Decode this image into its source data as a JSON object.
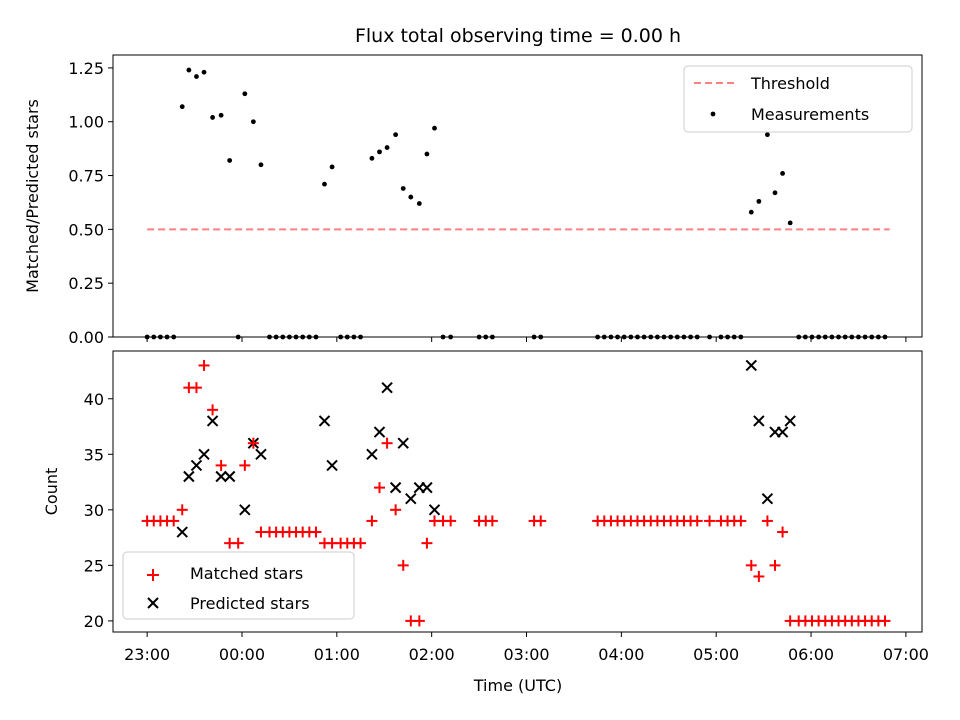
{
  "chart_data": {
    "title": "Flux total observing time = 0.00 h",
    "x_axis": {
      "label": "Time (UTC)",
      "ticks": [
        {
          "h": 0,
          "label": "23:00"
        },
        {
          "h": 1,
          "label": "00:00"
        },
        {
          "h": 2,
          "label": "01:00"
        },
        {
          "h": 3,
          "label": "02:00"
        },
        {
          "h": 4,
          "label": "03:00"
        },
        {
          "h": 5,
          "label": "04:00"
        },
        {
          "h": 6,
          "label": "05:00"
        },
        {
          "h": 7,
          "label": "06:00"
        },
        {
          "h": 8,
          "label": "07:00"
        }
      ],
      "range_hours_after_2300": [
        -0.36,
        8.17
      ]
    },
    "panels": [
      {
        "type": "scatter",
        "ylabel": "Matched/Predicted stars",
        "ylim": [
          0,
          1.31
        ],
        "yticks": [
          "0.00",
          "0.25",
          "0.50",
          "0.75",
          "1.00",
          "1.25"
        ],
        "threshold": {
          "name": "Threshold",
          "value": 0.5,
          "x_range": [
            0,
            7.83
          ],
          "color": "#ff8080"
        },
        "measurements": {
          "name": "Measurements",
          "color": "#000000",
          "points": [
            [
              0.0,
              0
            ],
            [
              0.07,
              0
            ],
            [
              0.14,
              0
            ],
            [
              0.21,
              0
            ],
            [
              0.28,
              0
            ],
            [
              0.37,
              1.07
            ],
            [
              0.44,
              1.24
            ],
            [
              0.52,
              1.21
            ],
            [
              0.6,
              1.23
            ],
            [
              0.69,
              1.02
            ],
            [
              0.78,
              1.03
            ],
            [
              0.87,
              0.82
            ],
            [
              0.96,
              0
            ],
            [
              1.03,
              1.13
            ],
            [
              1.12,
              1.0
            ],
            [
              1.2,
              0.8
            ],
            [
              1.29,
              0
            ],
            [
              1.36,
              0
            ],
            [
              1.43,
              0
            ],
            [
              1.5,
              0
            ],
            [
              1.57,
              0
            ],
            [
              1.64,
              0
            ],
            [
              1.71,
              0
            ],
            [
              1.78,
              0
            ],
            [
              1.87,
              0.71
            ],
            [
              1.95,
              0.79
            ],
            [
              2.04,
              0
            ],
            [
              2.11,
              0
            ],
            [
              2.18,
              0
            ],
            [
              2.25,
              0
            ],
            [
              2.37,
              0.83
            ],
            [
              2.45,
              0.86
            ],
            [
              2.53,
              0.88
            ],
            [
              2.62,
              0.94
            ],
            [
              2.7,
              0.69
            ],
            [
              2.78,
              0.65
            ],
            [
              2.87,
              0.62
            ],
            [
              2.95,
              0.85
            ],
            [
              3.03,
              0.97
            ],
            [
              3.12,
              0
            ],
            [
              3.2,
              0
            ],
            [
              3.5,
              0
            ],
            [
              3.57,
              0
            ],
            [
              3.64,
              0
            ],
            [
              4.08,
              0
            ],
            [
              4.15,
              0
            ],
            [
              4.75,
              0
            ],
            [
              4.82,
              0
            ],
            [
              4.89,
              0
            ],
            [
              4.96,
              0
            ],
            [
              5.03,
              0
            ],
            [
              5.1,
              0
            ],
            [
              5.17,
              0
            ],
            [
              5.24,
              0
            ],
            [
              5.31,
              0
            ],
            [
              5.38,
              0
            ],
            [
              5.45,
              0
            ],
            [
              5.52,
              0
            ],
            [
              5.59,
              0
            ],
            [
              5.66,
              0
            ],
            [
              5.73,
              0
            ],
            [
              5.8,
              0
            ],
            [
              5.93,
              0
            ],
            [
              6.05,
              0
            ],
            [
              6.12,
              0
            ],
            [
              6.19,
              0
            ],
            [
              6.26,
              0
            ],
            [
              6.37,
              0.58
            ],
            [
              6.45,
              0.63
            ],
            [
              6.54,
              0.94
            ],
            [
              6.62,
              0.67
            ],
            [
              6.7,
              0.76
            ],
            [
              6.78,
              0.53
            ],
            [
              6.87,
              0
            ],
            [
              6.94,
              0
            ],
            [
              7.01,
              0
            ],
            [
              7.08,
              0
            ],
            [
              7.15,
              0
            ],
            [
              7.22,
              0
            ],
            [
              7.29,
              0
            ],
            [
              7.36,
              0
            ],
            [
              7.43,
              0
            ],
            [
              7.5,
              0
            ],
            [
              7.57,
              0
            ],
            [
              7.64,
              0
            ],
            [
              7.71,
              0
            ],
            [
              7.78,
              0
            ]
          ]
        },
        "legend": [
          "Threshold",
          "Measurements"
        ],
        "legend_position": "upper right"
      },
      {
        "type": "scatter",
        "ylabel": "Count",
        "ylim": [
          19.0,
          44.3
        ],
        "yticks": [
          "20",
          "25",
          "30",
          "35",
          "40"
        ],
        "series": [
          {
            "name": "Matched stars",
            "marker": "+",
            "color": "#ff0000",
            "points": [
              [
                0.0,
                29
              ],
              [
                0.07,
                29
              ],
              [
                0.14,
                29
              ],
              [
                0.21,
                29
              ],
              [
                0.28,
                29
              ],
              [
                0.37,
                30
              ],
              [
                0.44,
                41
              ],
              [
                0.52,
                41
              ],
              [
                0.6,
                43
              ],
              [
                0.69,
                39
              ],
              [
                0.78,
                34
              ],
              [
                0.87,
                27
              ],
              [
                0.96,
                27
              ],
              [
                1.03,
                34
              ],
              [
                1.12,
                36
              ],
              [
                1.2,
                28
              ],
              [
                1.29,
                28
              ],
              [
                1.36,
                28
              ],
              [
                1.43,
                28
              ],
              [
                1.5,
                28
              ],
              [
                1.57,
                28
              ],
              [
                1.64,
                28
              ],
              [
                1.71,
                28
              ],
              [
                1.78,
                28
              ],
              [
                1.87,
                27
              ],
              [
                1.95,
                27
              ],
              [
                2.04,
                27
              ],
              [
                2.11,
                27
              ],
              [
                2.18,
                27
              ],
              [
                2.25,
                27
              ],
              [
                2.37,
                29
              ],
              [
                2.45,
                32
              ],
              [
                2.53,
                36
              ],
              [
                2.62,
                30
              ],
              [
                2.7,
                25
              ],
              [
                2.78,
                20
              ],
              [
                2.87,
                20
              ],
              [
                2.95,
                27
              ],
              [
                3.03,
                29
              ],
              [
                3.12,
                29
              ],
              [
                3.2,
                29
              ],
              [
                3.5,
                29
              ],
              [
                3.57,
                29
              ],
              [
                3.64,
                29
              ],
              [
                4.08,
                29
              ],
              [
                4.15,
                29
              ],
              [
                4.75,
                29
              ],
              [
                4.82,
                29
              ],
              [
                4.89,
                29
              ],
              [
                4.96,
                29
              ],
              [
                5.03,
                29
              ],
              [
                5.1,
                29
              ],
              [
                5.17,
                29
              ],
              [
                5.24,
                29
              ],
              [
                5.31,
                29
              ],
              [
                5.38,
                29
              ],
              [
                5.45,
                29
              ],
              [
                5.52,
                29
              ],
              [
                5.59,
                29
              ],
              [
                5.66,
                29
              ],
              [
                5.73,
                29
              ],
              [
                5.8,
                29
              ],
              [
                5.93,
                29
              ],
              [
                6.05,
                29
              ],
              [
                6.12,
                29
              ],
              [
                6.19,
                29
              ],
              [
                6.26,
                29
              ],
              [
                6.37,
                25
              ],
              [
                6.45,
                24
              ],
              [
                6.54,
                29
              ],
              [
                6.62,
                25
              ],
              [
                6.7,
                28
              ],
              [
                6.78,
                20
              ],
              [
                6.87,
                20
              ],
              [
                6.94,
                20
              ],
              [
                7.01,
                20
              ],
              [
                7.08,
                20
              ],
              [
                7.15,
                20
              ],
              [
                7.22,
                20
              ],
              [
                7.29,
                20
              ],
              [
                7.36,
                20
              ],
              [
                7.43,
                20
              ],
              [
                7.5,
                20
              ],
              [
                7.57,
                20
              ],
              [
                7.64,
                20
              ],
              [
                7.71,
                20
              ],
              [
                7.78,
                20
              ]
            ]
          },
          {
            "name": "Predicted stars",
            "marker": "x",
            "color": "#000000",
            "points": [
              [
                0.37,
                28
              ],
              [
                0.44,
                33
              ],
              [
                0.52,
                34
              ],
              [
                0.6,
                35
              ],
              [
                0.69,
                38
              ],
              [
                0.78,
                33
              ],
              [
                0.87,
                33
              ],
              [
                1.03,
                30
              ],
              [
                1.12,
                36
              ],
              [
                1.2,
                35
              ],
              [
                1.87,
                38
              ],
              [
                1.95,
                34
              ],
              [
                2.37,
                35
              ],
              [
                2.45,
                37
              ],
              [
                2.53,
                41
              ],
              [
                2.62,
                32
              ],
              [
                2.7,
                36
              ],
              [
                2.78,
                31
              ],
              [
                2.87,
                32
              ],
              [
                2.95,
                32
              ],
              [
                3.03,
                30
              ],
              [
                6.37,
                43
              ],
              [
                6.45,
                38
              ],
              [
                6.54,
                31
              ],
              [
                6.62,
                37
              ],
              [
                6.7,
                37
              ],
              [
                6.78,
                38
              ]
            ]
          }
        ],
        "legend": [
          "Matched stars",
          "Predicted stars"
        ],
        "legend_position": "lower left"
      }
    ]
  }
}
